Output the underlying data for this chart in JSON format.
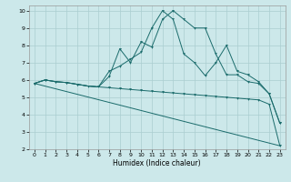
{
  "background_color": "#cce8ea",
  "grid_color": "#aacdd0",
  "line_color": "#1a6b6b",
  "marker_color": "#1a6b6b",
  "xlabel": "Humidex (Indice chaleur)",
  "xlim": [
    -0.5,
    23.5
  ],
  "ylim": [
    2,
    10.3
  ],
  "yticks": [
    2,
    3,
    4,
    5,
    6,
    7,
    8,
    9,
    10
  ],
  "xticks": [
    0,
    1,
    2,
    3,
    4,
    5,
    6,
    7,
    8,
    9,
    10,
    11,
    12,
    13,
    14,
    15,
    16,
    17,
    18,
    19,
    20,
    21,
    22,
    23
  ],
  "line1_x": [
    0,
    1,
    2,
    3,
    4,
    5,
    6,
    7,
    8,
    9,
    10,
    11,
    12,
    13,
    14,
    15,
    16,
    17,
    18,
    19,
    20,
    21,
    22,
    23
  ],
  "line1_y": [
    5.8,
    6.0,
    5.9,
    5.85,
    5.75,
    5.65,
    5.6,
    5.55,
    5.5,
    5.45,
    5.4,
    5.35,
    5.3,
    5.25,
    5.2,
    5.15,
    5.1,
    5.05,
    5.0,
    4.95,
    4.9,
    4.85,
    4.6,
    2.2
  ],
  "line2_x": [
    0,
    1,
    2,
    3,
    4,
    5,
    6,
    7,
    8,
    9,
    10,
    11,
    12,
    13,
    14,
    15,
    16,
    17,
    18,
    19,
    20,
    21,
    22,
    23
  ],
  "line2_y": [
    5.8,
    6.0,
    5.9,
    5.85,
    5.75,
    5.65,
    5.6,
    6.2,
    7.8,
    7.0,
    8.2,
    7.9,
    9.5,
    10.0,
    9.5,
    9.0,
    9.0,
    7.5,
    6.3,
    6.3,
    5.9,
    5.8,
    5.2,
    3.5
  ],
  "line3_x": [
    0,
    1,
    2,
    3,
    4,
    5,
    6,
    7,
    8,
    9,
    10,
    11,
    12,
    13,
    14,
    15,
    16,
    17,
    18,
    19,
    20,
    21,
    22,
    23
  ],
  "line3_y": [
    5.8,
    6.0,
    5.9,
    5.85,
    5.75,
    5.65,
    5.6,
    6.5,
    6.8,
    7.2,
    7.6,
    9.0,
    10.0,
    9.5,
    7.5,
    7.0,
    6.25,
    7.0,
    8.0,
    6.5,
    6.3,
    5.9,
    5.2,
    3.5
  ],
  "line4_x": [
    0,
    23
  ],
  "line4_y": [
    5.8,
    2.2
  ],
  "markers2_x": [
    0,
    1,
    2,
    3,
    4,
    7,
    8,
    9,
    10,
    11,
    12,
    13,
    14,
    15,
    16,
    17,
    18,
    19,
    20,
    21,
    22,
    23
  ],
  "markers2_y": [
    5.8,
    6.0,
    5.9,
    5.85,
    5.75,
    6.2,
    7.8,
    7.0,
    8.2,
    7.9,
    9.5,
    10.0,
    9.5,
    9.0,
    9.0,
    7.5,
    6.3,
    6.3,
    5.9,
    5.8,
    5.2,
    3.5
  ],
  "markers3_x": [
    0,
    1,
    2,
    3,
    4,
    7,
    8,
    9,
    10,
    11,
    12,
    13,
    14,
    15,
    16,
    17,
    18,
    19,
    20,
    21,
    22,
    23
  ],
  "markers3_y": [
    5.8,
    6.0,
    5.9,
    5.85,
    5.75,
    6.5,
    6.8,
    7.2,
    7.6,
    9.0,
    10.0,
    9.5,
    7.5,
    7.0,
    6.25,
    7.0,
    8.0,
    6.5,
    6.3,
    5.9,
    5.2,
    3.5
  ],
  "markers1_x": [
    0,
    1,
    2,
    3,
    4,
    5,
    6,
    7,
    8,
    9,
    10,
    11,
    12,
    13,
    14,
    15,
    16,
    17,
    18,
    19,
    20,
    21,
    22,
    23
  ],
  "markers1_y": [
    5.8,
    6.0,
    5.9,
    5.85,
    5.75,
    5.65,
    5.6,
    5.55,
    5.5,
    5.45,
    5.4,
    5.35,
    5.3,
    5.25,
    5.2,
    5.15,
    5.1,
    5.05,
    5.0,
    4.95,
    4.9,
    4.85,
    4.6,
    2.2
  ]
}
